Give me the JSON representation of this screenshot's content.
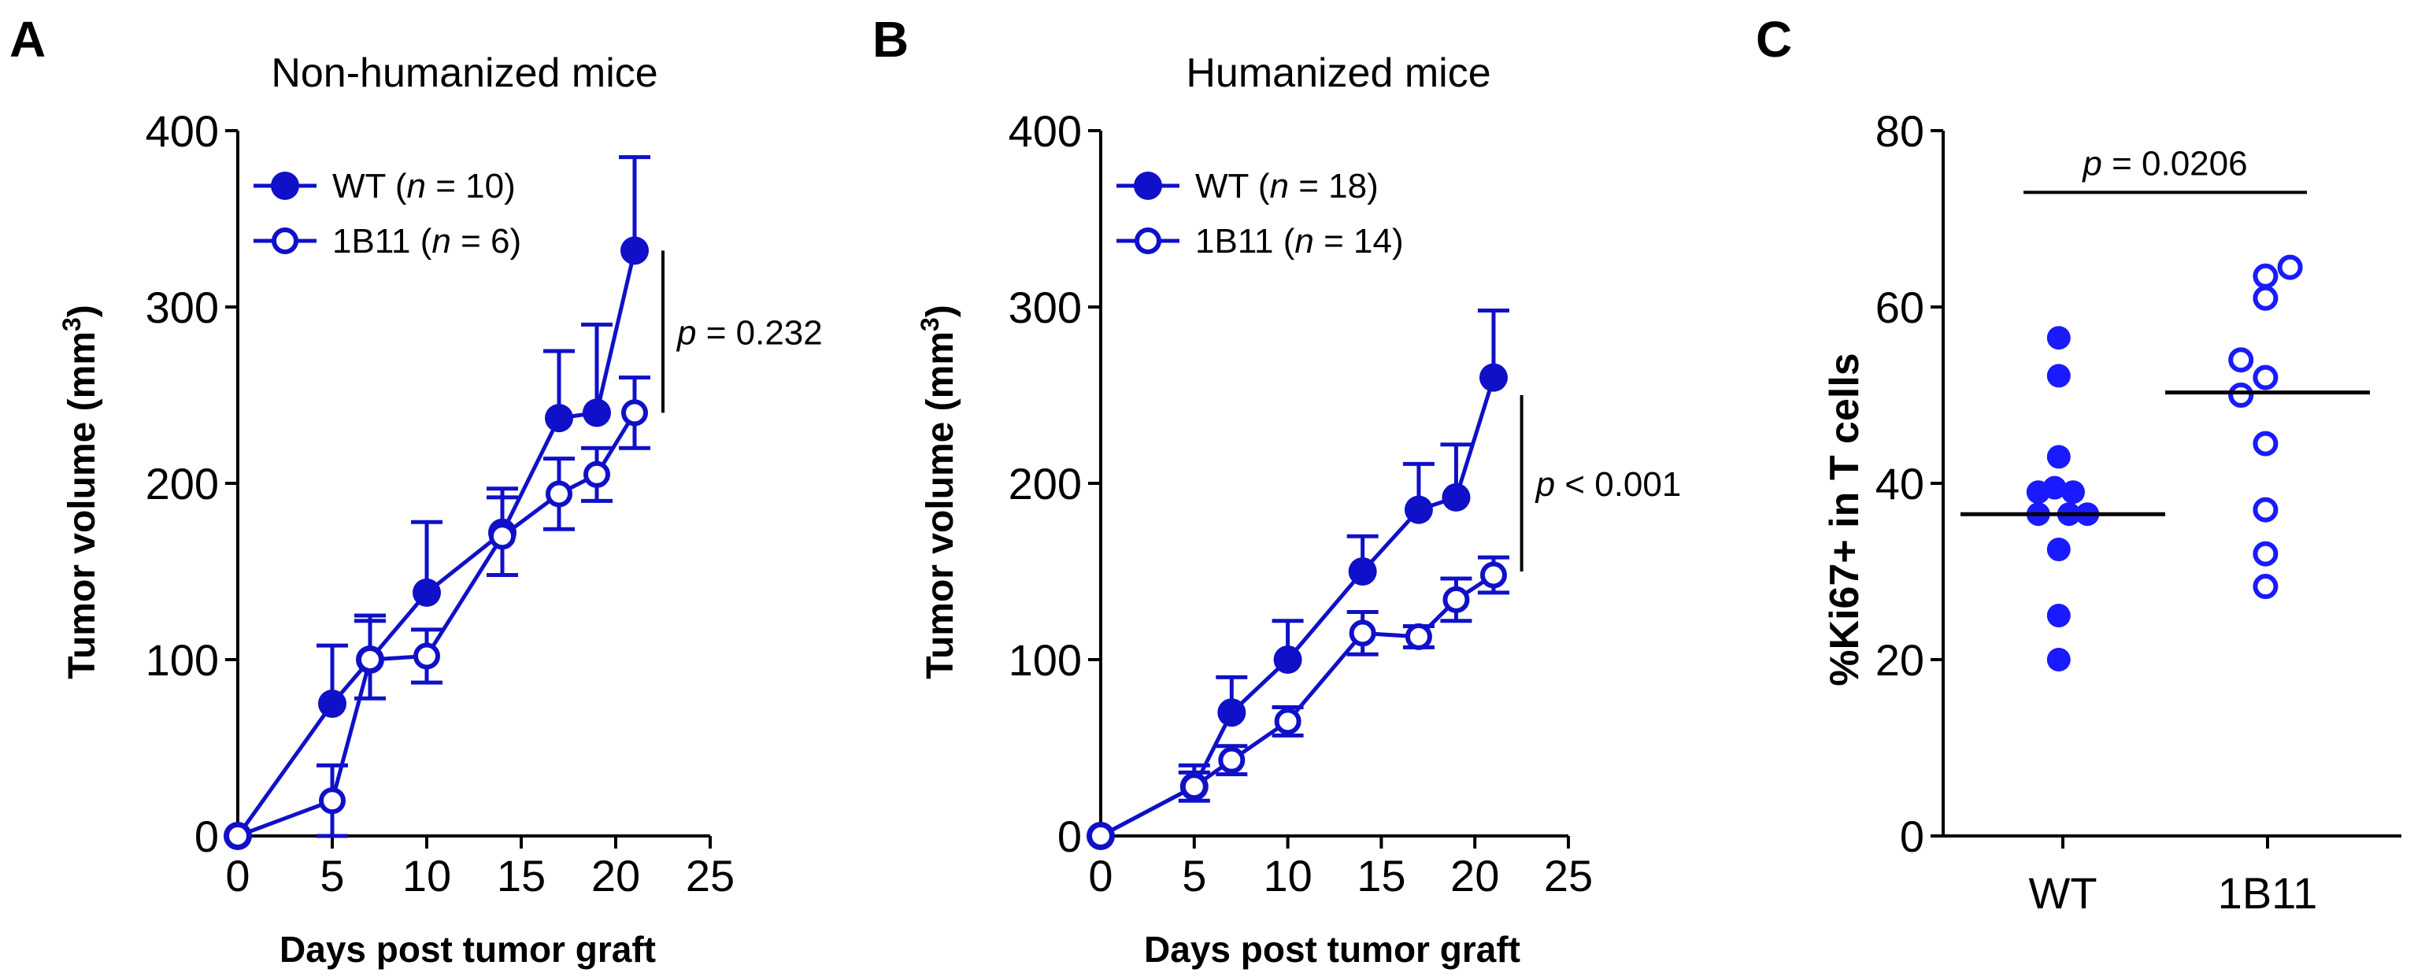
{
  "colors": {
    "series": "#1010c8",
    "points": "#1a1aff",
    "axis": "#000000",
    "median": "#000000"
  },
  "chart_data": [
    {
      "panel_letter": "A",
      "type": "line",
      "title": "Non-humanized mice",
      "xlabel": "Days post tumor graft",
      "ylabel_main": "Tumor volume (mm",
      "ylabel_sup": "3",
      "ylabel_close": ")",
      "xlim": [
        0,
        25
      ],
      "ylim": [
        0,
        400
      ],
      "xticks": [
        "0",
        "5",
        "10",
        "15",
        "20",
        "25"
      ],
      "yticks": [
        "0",
        "100",
        "200",
        "300",
        "400"
      ],
      "series": [
        {
          "name": "WT",
          "n_label": "n",
          "n_eq": " = 10)",
          "legend_prefix": "WT (",
          "marker": "filled",
          "x": [
            0,
            5,
            7,
            10,
            14,
            17,
            19,
            21
          ],
          "y": [
            0,
            75,
            100,
            138,
            172,
            237,
            240,
            332
          ],
          "err": [
            0,
            33,
            25,
            40,
            25,
            38,
            50,
            53
          ]
        },
        {
          "name": "1B11",
          "n_label": "n",
          "n_eq": " = 6)",
          "legend_prefix": "1B11 (",
          "marker": "open",
          "x": [
            0,
            5,
            7,
            10,
            14,
            17,
            19,
            21
          ],
          "y": [
            0,
            20,
            100,
            102,
            170,
            194,
            205,
            240
          ],
          "err": [
            0,
            20,
            22,
            15,
            22,
            20,
            15,
            20
          ]
        }
      ],
      "annotation": {
        "p_label": "p",
        "p_text": " = 0.232",
        "y1": 240,
        "y2": 332
      }
    },
    {
      "panel_letter": "B",
      "type": "line",
      "title": "Humanized mice",
      "xlabel": "Days post tumor graft",
      "ylabel_main": "Tumor volume (mm",
      "ylabel_sup": "3",
      "ylabel_close": ")",
      "xlim": [
        0,
        25
      ],
      "ylim": [
        0,
        400
      ],
      "xticks": [
        "0",
        "5",
        "10",
        "15",
        "20",
        "25"
      ],
      "yticks": [
        "0",
        "100",
        "200",
        "300",
        "400"
      ],
      "series": [
        {
          "name": "WT",
          "n_label": "n",
          "n_eq": " = 18)",
          "legend_prefix": "WT (",
          "marker": "filled",
          "x": [
            0,
            5,
            7,
            10,
            14,
            17,
            19,
            21
          ],
          "y": [
            0,
            28,
            70,
            100,
            150,
            185,
            192,
            260
          ],
          "err": [
            0,
            12,
            20,
            22,
            20,
            26,
            30,
            38
          ]
        },
        {
          "name": "1B11",
          "n_label": "n",
          "n_eq": " = 14)",
          "legend_prefix": "1B11 (",
          "marker": "open",
          "x": [
            0,
            5,
            7,
            10,
            14,
            17,
            19,
            21
          ],
          "y": [
            0,
            28,
            43,
            65,
            115,
            113,
            134,
            148
          ],
          "err": [
            0,
            8,
            8,
            8,
            12,
            6,
            12,
            10
          ]
        }
      ],
      "annotation": {
        "p_label": "p",
        "p_text": " < 0.001",
        "y1": 150,
        "y2": 250
      }
    },
    {
      "panel_letter": "C",
      "type": "scatter",
      "ylabel": "%Ki67+ in T cells",
      "ylim": [
        0,
        80
      ],
      "yticks": [
        "0",
        "20",
        "40",
        "60",
        "80"
      ],
      "categories": [
        "WT",
        "1B11"
      ],
      "groups": [
        {
          "name": "WT",
          "marker": "filled",
          "median": 36.5,
          "points": [
            {
              "dx": -0.04,
              "y": 56.5
            },
            {
              "dx": -0.04,
              "y": 52.2
            },
            {
              "dx": -0.04,
              "y": 43.0
            },
            {
              "dx": -0.24,
              "y": 39.0
            },
            {
              "dx": -0.08,
              "y": 39.5
            },
            {
              "dx": 0.1,
              "y": 39.0
            },
            {
              "dx": -0.24,
              "y": 36.5
            },
            {
              "dx": 0.06,
              "y": 36.5
            },
            {
              "dx": 0.24,
              "y": 36.5
            },
            {
              "dx": -0.04,
              "y": 32.5
            },
            {
              "dx": -0.04,
              "y": 25.0
            },
            {
              "dx": -0.04,
              "y": 20.0
            }
          ]
        },
        {
          "name": "1B11",
          "marker": "open",
          "median": 50.3,
          "points": [
            {
              "dx": 0.22,
              "y": 64.5
            },
            {
              "dx": -0.02,
              "y": 63.5
            },
            {
              "dx": -0.02,
              "y": 61.0
            },
            {
              "dx": -0.26,
              "y": 54.0
            },
            {
              "dx": -0.02,
              "y": 52.0
            },
            {
              "dx": -0.26,
              "y": 50.0
            },
            {
              "dx": -0.02,
              "y": 44.5
            },
            {
              "dx": -0.02,
              "y": 37.0
            },
            {
              "dx": -0.02,
              "y": 32.0
            },
            {
              "dx": -0.02,
              "y": 28.3
            }
          ]
        }
      ],
      "annotation": {
        "p_label": "p",
        "p_text": " = 0.0206"
      }
    }
  ]
}
